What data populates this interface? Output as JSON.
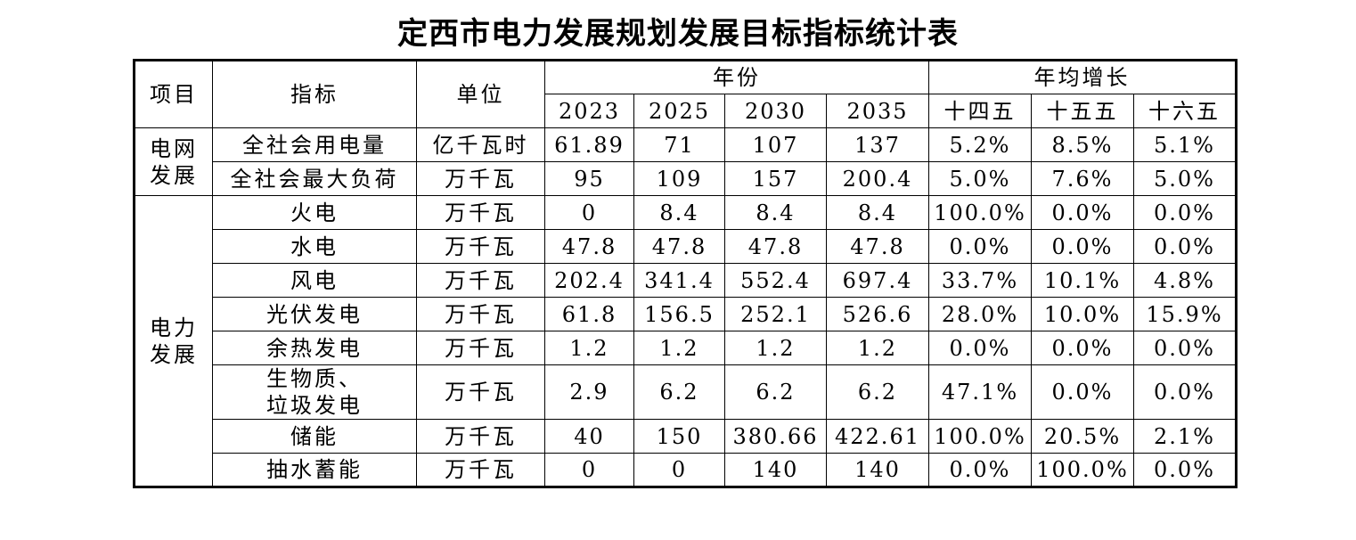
{
  "title": "定西市电力发展规划发展目标指标统计表",
  "headers": {
    "project": "项目",
    "indicator": "指标",
    "unit": "单位",
    "year_group": "年份",
    "growth_group": "年均增长",
    "years": [
      "2023",
      "2025",
      "2030",
      "2035"
    ],
    "plans": [
      "十四五",
      "十五五",
      "十六五"
    ]
  },
  "groups": {
    "grid": "电网\n发展",
    "power": "电力\n发展"
  },
  "rows": [
    {
      "indicator": "全社会用电量",
      "unit": "亿千瓦时",
      "values": [
        "61.89",
        "71",
        "107",
        "137"
      ],
      "growth": [
        "5.2%",
        "8.5%",
        "5.1%"
      ]
    },
    {
      "indicator": "全社会最大负荷",
      "unit": "万千瓦",
      "values": [
        "95",
        "109",
        "157",
        "200.4"
      ],
      "growth": [
        "5.0%",
        "7.6%",
        "5.0%"
      ]
    },
    {
      "indicator": "火电",
      "unit": "万千瓦",
      "values": [
        "0",
        "8.4",
        "8.4",
        "8.4"
      ],
      "growth": [
        "100.0%",
        "0.0%",
        "0.0%"
      ]
    },
    {
      "indicator": "水电",
      "unit": "万千瓦",
      "values": [
        "47.8",
        "47.8",
        "47.8",
        "47.8"
      ],
      "growth": [
        "0.0%",
        "0.0%",
        "0.0%"
      ]
    },
    {
      "indicator": "风电",
      "unit": "万千瓦",
      "values": [
        "202.4",
        "341.4",
        "552.4",
        "697.4"
      ],
      "growth": [
        "33.7%",
        "10.1%",
        "4.8%"
      ]
    },
    {
      "indicator": "光伏发电",
      "unit": "万千瓦",
      "values": [
        "61.8",
        "156.5",
        "252.1",
        "526.6"
      ],
      "growth": [
        "28.0%",
        "10.0%",
        "15.9%"
      ]
    },
    {
      "indicator": "余热发电",
      "unit": "万千瓦",
      "values": [
        "1.2",
        "1.2",
        "1.2",
        "1.2"
      ],
      "growth": [
        "0.0%",
        "0.0%",
        "0.0%"
      ]
    },
    {
      "indicator": "生物质、\n垃圾发电",
      "unit": "万千瓦",
      "values": [
        "2.9",
        "6.2",
        "6.2",
        "6.2"
      ],
      "growth": [
        "47.1%",
        "0.0%",
        "0.0%"
      ]
    },
    {
      "indicator": "储能",
      "unit": "万千瓦",
      "values": [
        "40",
        "150",
        "380.66",
        "422.61"
      ],
      "growth": [
        "100.0%",
        "20.5%",
        "2.1%"
      ]
    },
    {
      "indicator": "抽水蓄能",
      "unit": "万千瓦",
      "values": [
        "0",
        "0",
        "140",
        "140"
      ],
      "growth": [
        "0.0%",
        "100.0%",
        "0.0%"
      ]
    }
  ]
}
